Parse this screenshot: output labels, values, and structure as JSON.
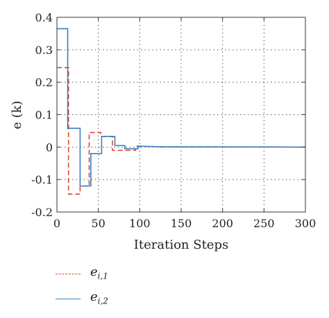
{
  "chart_data": {
    "type": "line",
    "title": "",
    "xlabel": "Iteration Steps",
    "ylabel": "e (k)",
    "xlim": [
      0,
      300
    ],
    "ylim": [
      -0.2,
      0.4
    ],
    "xticks": [
      0,
      50,
      100,
      150,
      200,
      250,
      300
    ],
    "yticks": [
      -0.2,
      -0.1,
      0,
      0.1,
      0.2,
      0.3,
      0.4
    ],
    "xtick_labels": [
      "0",
      "50",
      "100",
      "150",
      "200",
      "250",
      "300"
    ],
    "ytick_labels": [
      "-0.2",
      "-0.1",
      "0",
      "0.1",
      "0.2",
      "0.3",
      "0.4"
    ],
    "grid": true,
    "grid_style": "dotted",
    "legend_position": "below",
    "series": [
      {
        "name": "e_{i,1}",
        "legend_main": "e",
        "legend_sub": "i,1",
        "color": "#d94a2b",
        "style": "dashed",
        "x": [
          0,
          14,
          14,
          28,
          28,
          39,
          39,
          53,
          53,
          67,
          67,
          95,
          95,
          125,
          300
        ],
        "y": [
          0.245,
          0.245,
          -0.145,
          -0.145,
          -0.12,
          -0.12,
          0.045,
          0.045,
          0.033,
          0.033,
          -0.01,
          -0.01,
          0.003,
          0.001,
          0
        ]
      },
      {
        "name": "e_{i,2}",
        "legend_main": "e",
        "legend_sub": "i,2",
        "color": "#3a7fbd",
        "style": "solid",
        "x": [
          0,
          13,
          13,
          28,
          28,
          41,
          41,
          54,
          54,
          70,
          70,
          82,
          82,
          98,
          98,
          125,
          300
        ],
        "y": [
          0.365,
          0.365,
          0.058,
          0.058,
          -0.12,
          -0.12,
          -0.02,
          -0.02,
          0.033,
          0.033,
          0.005,
          0.005,
          -0.005,
          -0.005,
          0.003,
          0.001,
          0
        ]
      }
    ]
  }
}
